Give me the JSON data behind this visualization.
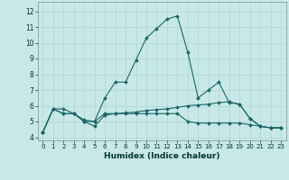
{
  "xlabel": "Humidex (Indice chaleur)",
  "xlim": [
    -0.5,
    23.5
  ],
  "ylim": [
    3.8,
    12.6
  ],
  "yticks": [
    4,
    5,
    6,
    7,
    8,
    9,
    10,
    11,
    12
  ],
  "xticks": [
    0,
    1,
    2,
    3,
    4,
    5,
    6,
    7,
    8,
    9,
    10,
    11,
    12,
    13,
    14,
    15,
    16,
    17,
    18,
    19,
    20,
    21,
    22,
    23
  ],
  "background_color": "#c8e8e8",
  "grid_color": "#b0d4d4",
  "line_color": "#1a6666",
  "line1_x": [
    0,
    1,
    2,
    3,
    4,
    5,
    6,
    7,
    8,
    9,
    10,
    11,
    12,
    13,
    14,
    15,
    16,
    17,
    18,
    19,
    20,
    21,
    22,
    23
  ],
  "line1_y": [
    4.3,
    5.8,
    5.8,
    5.5,
    5.0,
    5.0,
    6.5,
    7.5,
    7.5,
    8.9,
    10.3,
    10.9,
    11.5,
    11.7,
    9.4,
    6.5,
    7.0,
    7.5,
    6.2,
    6.1,
    5.2,
    4.7,
    4.6,
    4.6
  ],
  "line2_x": [
    0,
    1,
    2,
    3,
    4,
    5,
    6,
    7,
    8,
    9,
    10,
    11,
    12,
    13,
    14,
    15,
    16,
    17,
    18,
    19,
    20,
    21,
    22,
    23
  ],
  "line2_y": [
    4.3,
    5.8,
    5.5,
    5.5,
    5.0,
    4.7,
    5.4,
    5.5,
    5.55,
    5.6,
    5.7,
    5.75,
    5.8,
    5.9,
    6.0,
    6.05,
    6.1,
    6.2,
    6.25,
    6.1,
    5.2,
    4.7,
    4.6,
    4.6
  ],
  "line3_x": [
    0,
    1,
    2,
    3,
    4,
    5,
    6,
    7,
    8,
    9,
    10,
    11,
    12,
    13,
    14,
    15,
    16,
    17,
    18,
    19,
    20,
    21,
    22,
    23
  ],
  "line3_y": [
    4.3,
    5.8,
    5.5,
    5.5,
    5.1,
    5.0,
    5.5,
    5.5,
    5.5,
    5.5,
    5.5,
    5.5,
    5.5,
    5.5,
    5.0,
    4.9,
    4.9,
    4.9,
    4.9,
    4.9,
    4.8,
    4.7,
    4.6,
    4.6
  ]
}
